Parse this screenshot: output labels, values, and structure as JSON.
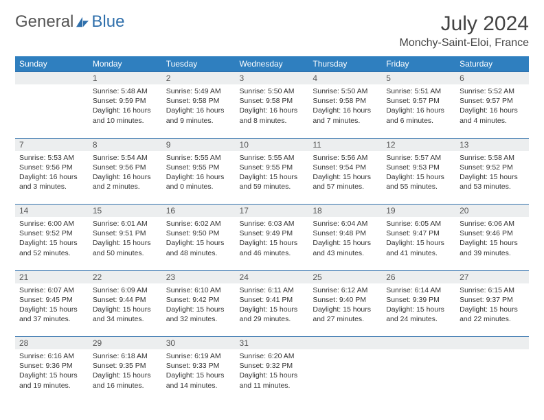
{
  "brand": {
    "part1": "General",
    "part2": "Blue"
  },
  "title": "July 2024",
  "location": "Monchy-Saint-Eloi, France",
  "colors": {
    "header_bg": "#2f7fbf",
    "accent": "#2f6fab",
    "daynum_bg": "#eceeef"
  },
  "day_headers": [
    "Sunday",
    "Monday",
    "Tuesday",
    "Wednesday",
    "Thursday",
    "Friday",
    "Saturday"
  ],
  "weeks": [
    [
      {
        "num": "",
        "sunrise": "",
        "sunset": "",
        "daylight": ""
      },
      {
        "num": "1",
        "sunrise": "Sunrise: 5:48 AM",
        "sunset": "Sunset: 9:59 PM",
        "daylight": "Daylight: 16 hours and 10 minutes."
      },
      {
        "num": "2",
        "sunrise": "Sunrise: 5:49 AM",
        "sunset": "Sunset: 9:58 PM",
        "daylight": "Daylight: 16 hours and 9 minutes."
      },
      {
        "num": "3",
        "sunrise": "Sunrise: 5:50 AM",
        "sunset": "Sunset: 9:58 PM",
        "daylight": "Daylight: 16 hours and 8 minutes."
      },
      {
        "num": "4",
        "sunrise": "Sunrise: 5:50 AM",
        "sunset": "Sunset: 9:58 PM",
        "daylight": "Daylight: 16 hours and 7 minutes."
      },
      {
        "num": "5",
        "sunrise": "Sunrise: 5:51 AM",
        "sunset": "Sunset: 9:57 PM",
        "daylight": "Daylight: 16 hours and 6 minutes."
      },
      {
        "num": "6",
        "sunrise": "Sunrise: 5:52 AM",
        "sunset": "Sunset: 9:57 PM",
        "daylight": "Daylight: 16 hours and 4 minutes."
      }
    ],
    [
      {
        "num": "7",
        "sunrise": "Sunrise: 5:53 AM",
        "sunset": "Sunset: 9:56 PM",
        "daylight": "Daylight: 16 hours and 3 minutes."
      },
      {
        "num": "8",
        "sunrise": "Sunrise: 5:54 AM",
        "sunset": "Sunset: 9:56 PM",
        "daylight": "Daylight: 16 hours and 2 minutes."
      },
      {
        "num": "9",
        "sunrise": "Sunrise: 5:55 AM",
        "sunset": "Sunset: 9:55 PM",
        "daylight": "Daylight: 16 hours and 0 minutes."
      },
      {
        "num": "10",
        "sunrise": "Sunrise: 5:55 AM",
        "sunset": "Sunset: 9:55 PM",
        "daylight": "Daylight: 15 hours and 59 minutes."
      },
      {
        "num": "11",
        "sunrise": "Sunrise: 5:56 AM",
        "sunset": "Sunset: 9:54 PM",
        "daylight": "Daylight: 15 hours and 57 minutes."
      },
      {
        "num": "12",
        "sunrise": "Sunrise: 5:57 AM",
        "sunset": "Sunset: 9:53 PM",
        "daylight": "Daylight: 15 hours and 55 minutes."
      },
      {
        "num": "13",
        "sunrise": "Sunrise: 5:58 AM",
        "sunset": "Sunset: 9:52 PM",
        "daylight": "Daylight: 15 hours and 53 minutes."
      }
    ],
    [
      {
        "num": "14",
        "sunrise": "Sunrise: 6:00 AM",
        "sunset": "Sunset: 9:52 PM",
        "daylight": "Daylight: 15 hours and 52 minutes."
      },
      {
        "num": "15",
        "sunrise": "Sunrise: 6:01 AM",
        "sunset": "Sunset: 9:51 PM",
        "daylight": "Daylight: 15 hours and 50 minutes."
      },
      {
        "num": "16",
        "sunrise": "Sunrise: 6:02 AM",
        "sunset": "Sunset: 9:50 PM",
        "daylight": "Daylight: 15 hours and 48 minutes."
      },
      {
        "num": "17",
        "sunrise": "Sunrise: 6:03 AM",
        "sunset": "Sunset: 9:49 PM",
        "daylight": "Daylight: 15 hours and 46 minutes."
      },
      {
        "num": "18",
        "sunrise": "Sunrise: 6:04 AM",
        "sunset": "Sunset: 9:48 PM",
        "daylight": "Daylight: 15 hours and 43 minutes."
      },
      {
        "num": "19",
        "sunrise": "Sunrise: 6:05 AM",
        "sunset": "Sunset: 9:47 PM",
        "daylight": "Daylight: 15 hours and 41 minutes."
      },
      {
        "num": "20",
        "sunrise": "Sunrise: 6:06 AM",
        "sunset": "Sunset: 9:46 PM",
        "daylight": "Daylight: 15 hours and 39 minutes."
      }
    ],
    [
      {
        "num": "21",
        "sunrise": "Sunrise: 6:07 AM",
        "sunset": "Sunset: 9:45 PM",
        "daylight": "Daylight: 15 hours and 37 minutes."
      },
      {
        "num": "22",
        "sunrise": "Sunrise: 6:09 AM",
        "sunset": "Sunset: 9:44 PM",
        "daylight": "Daylight: 15 hours and 34 minutes."
      },
      {
        "num": "23",
        "sunrise": "Sunrise: 6:10 AM",
        "sunset": "Sunset: 9:42 PM",
        "daylight": "Daylight: 15 hours and 32 minutes."
      },
      {
        "num": "24",
        "sunrise": "Sunrise: 6:11 AM",
        "sunset": "Sunset: 9:41 PM",
        "daylight": "Daylight: 15 hours and 29 minutes."
      },
      {
        "num": "25",
        "sunrise": "Sunrise: 6:12 AM",
        "sunset": "Sunset: 9:40 PM",
        "daylight": "Daylight: 15 hours and 27 minutes."
      },
      {
        "num": "26",
        "sunrise": "Sunrise: 6:14 AM",
        "sunset": "Sunset: 9:39 PM",
        "daylight": "Daylight: 15 hours and 24 minutes."
      },
      {
        "num": "27",
        "sunrise": "Sunrise: 6:15 AM",
        "sunset": "Sunset: 9:37 PM",
        "daylight": "Daylight: 15 hours and 22 minutes."
      }
    ],
    [
      {
        "num": "28",
        "sunrise": "Sunrise: 6:16 AM",
        "sunset": "Sunset: 9:36 PM",
        "daylight": "Daylight: 15 hours and 19 minutes."
      },
      {
        "num": "29",
        "sunrise": "Sunrise: 6:18 AM",
        "sunset": "Sunset: 9:35 PM",
        "daylight": "Daylight: 15 hours and 16 minutes."
      },
      {
        "num": "30",
        "sunrise": "Sunrise: 6:19 AM",
        "sunset": "Sunset: 9:33 PM",
        "daylight": "Daylight: 15 hours and 14 minutes."
      },
      {
        "num": "31",
        "sunrise": "Sunrise: 6:20 AM",
        "sunset": "Sunset: 9:32 PM",
        "daylight": "Daylight: 15 hours and 11 minutes."
      },
      {
        "num": "",
        "sunrise": "",
        "sunset": "",
        "daylight": ""
      },
      {
        "num": "",
        "sunrise": "",
        "sunset": "",
        "daylight": ""
      },
      {
        "num": "",
        "sunrise": "",
        "sunset": "",
        "daylight": ""
      }
    ]
  ]
}
